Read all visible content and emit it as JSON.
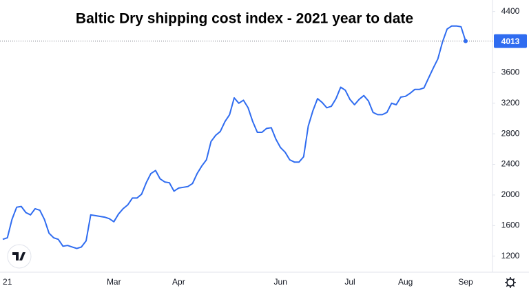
{
  "chart_data": {
    "type": "line",
    "title": "Baltic Dry shipping cost index - 2021 year to date",
    "color": "#2f6cf0",
    "categories": [
      null,
      "21",
      null,
      null,
      null,
      null,
      null,
      null,
      null,
      null,
      null,
      null,
      null,
      null,
      null,
      null,
      null,
      null,
      null,
      null,
      null,
      null,
      null,
      null,
      "Mar",
      null,
      null,
      null,
      null,
      null,
      null,
      null,
      null,
      null,
      null,
      null,
      null,
      null,
      "Apr",
      null,
      null,
      null,
      null,
      null,
      null,
      null,
      null,
      null,
      null,
      null,
      null,
      null,
      null,
      null,
      null,
      null,
      null,
      null,
      null,
      null,
      "Jun",
      null,
      null,
      null,
      null,
      null,
      null,
      null,
      null,
      null,
      null,
      null,
      null,
      null,
      null,
      "Jul",
      null,
      null,
      null,
      null,
      null,
      null,
      null,
      null,
      null,
      null,
      null,
      "Aug",
      null,
      null,
      null,
      null,
      null,
      null,
      null,
      null,
      null,
      null,
      null,
      null,
      "Sep"
    ],
    "values": [
      1420,
      1440,
      1680,
      1840,
      1850,
      1770,
      1740,
      1820,
      1800,
      1680,
      1500,
      1440,
      1420,
      1330,
      1340,
      1320,
      1300,
      1320,
      1400,
      1740,
      1730,
      1720,
      1710,
      1690,
      1650,
      1750,
      1820,
      1870,
      1960,
      1960,
      2010,
      2160,
      2280,
      2320,
      2210,
      2170,
      2160,
      2050,
      2090,
      2100,
      2110,
      2150,
      2280,
      2380,
      2460,
      2700,
      2780,
      2830,
      2960,
      3050,
      3270,
      3200,
      3240,
      3140,
      2960,
      2820,
      2820,
      2870,
      2880,
      2730,
      2620,
      2560,
      2460,
      2430,
      2430,
      2500,
      2900,
      3100,
      3260,
      3210,
      3140,
      3160,
      3260,
      3410,
      3370,
      3250,
      3180,
      3250,
      3300,
      3230,
      3080,
      3050,
      3050,
      3080,
      3200,
      3180,
      3280,
      3290,
      3330,
      3380,
      3380,
      3400,
      3530,
      3660,
      3780,
      4000,
      4170,
      4210,
      4210,
      4200,
      4013
    ],
    "ylim": [
      990,
      4550
    ],
    "yticks": [
      1200,
      1600,
      2000,
      2400,
      2800,
      3200,
      3600,
      4400
    ]
  }
}
